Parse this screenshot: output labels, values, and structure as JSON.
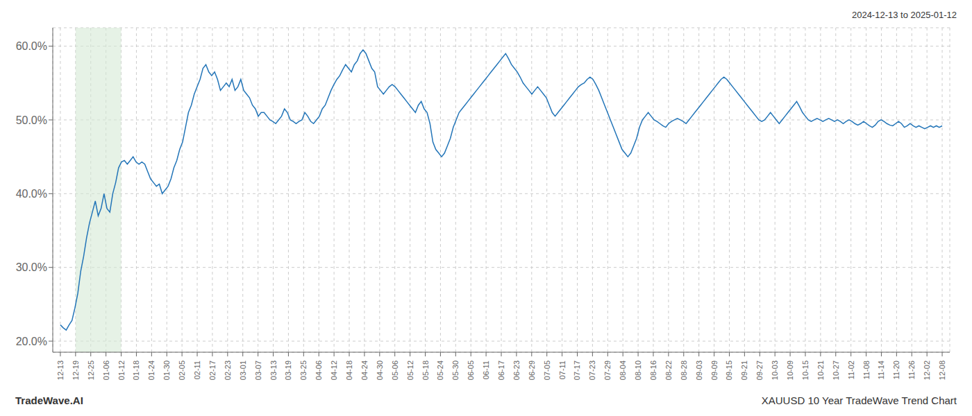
{
  "chart_data": {
    "type": "line",
    "color": "#2375b8",
    "grid": true,
    "annotations": [
      "2024-12-13 to 2025-01-12",
      "TradeWave.AI",
      "XAUUSD 10 Year TradeWave Trend Chart"
    ],
    "shaded": [
      {
        "start": 1,
        "end": 4,
        "color": "#d6ead6"
      }
    ],
    "xlim": [
      -0.5,
      58.5
    ],
    "xticks": [
      {
        "value": 0,
        "label": "12-13"
      },
      {
        "value": 1,
        "label": "12-19"
      },
      {
        "value": 2,
        "label": "12-25"
      },
      {
        "value": 3,
        "label": "01-06"
      },
      {
        "value": 4,
        "label": "01-12"
      },
      {
        "value": 5,
        "label": "01-18"
      },
      {
        "value": 6,
        "label": "01-24"
      },
      {
        "value": 7,
        "label": "01-30"
      },
      {
        "value": 8,
        "label": "02-05"
      },
      {
        "value": 9,
        "label": "02-11"
      },
      {
        "value": 10,
        "label": "02-17"
      },
      {
        "value": 11,
        "label": "02-23"
      },
      {
        "value": 12,
        "label": "03-01"
      },
      {
        "value": 13,
        "label": "03-07"
      },
      {
        "value": 14,
        "label": "03-13"
      },
      {
        "value": 15,
        "label": "03-19"
      },
      {
        "value": 16,
        "label": "03-25"
      },
      {
        "value": 17,
        "label": "04-06"
      },
      {
        "value": 18,
        "label": "04-12"
      },
      {
        "value": 19,
        "label": "04-18"
      },
      {
        "value": 20,
        "label": "04-24"
      },
      {
        "value": 21,
        "label": "04-30"
      },
      {
        "value": 22,
        "label": "05-06"
      },
      {
        "value": 23,
        "label": "05-12"
      },
      {
        "value": 24,
        "label": "05-18"
      },
      {
        "value": 25,
        "label": "05-24"
      },
      {
        "value": 26,
        "label": "05-30"
      },
      {
        "value": 27,
        "label": "06-05"
      },
      {
        "value": 28,
        "label": "06-11"
      },
      {
        "value": 29,
        "label": "06-17"
      },
      {
        "value": 30,
        "label": "06-23"
      },
      {
        "value": 31,
        "label": "06-29"
      },
      {
        "value": 32,
        "label": "07-05"
      },
      {
        "value": 33,
        "label": "07-11"
      },
      {
        "value": 34,
        "label": "07-17"
      },
      {
        "value": 35,
        "label": "07-23"
      },
      {
        "value": 36,
        "label": "07-29"
      },
      {
        "value": 37,
        "label": "08-04"
      },
      {
        "value": 38,
        "label": "08-10"
      },
      {
        "value": 39,
        "label": "08-16"
      },
      {
        "value": 40,
        "label": "08-22"
      },
      {
        "value": 41,
        "label": "08-28"
      },
      {
        "value": 42,
        "label": "09-03"
      },
      {
        "value": 43,
        "label": "09-09"
      },
      {
        "value": 44,
        "label": "09-15"
      },
      {
        "value": 45,
        "label": "09-21"
      },
      {
        "value": 46,
        "label": "09-27"
      },
      {
        "value": 47,
        "label": "10-03"
      },
      {
        "value": 48,
        "label": "10-09"
      },
      {
        "value": 49,
        "label": "10-15"
      },
      {
        "value": 50,
        "label": "10-21"
      },
      {
        "value": 51,
        "label": "10-27"
      },
      {
        "value": 52,
        "label": "11-02"
      },
      {
        "value": 53,
        "label": "11-08"
      },
      {
        "value": 54,
        "label": "11-14"
      },
      {
        "value": 55,
        "label": "11-20"
      },
      {
        "value": 56,
        "label": "11-26"
      },
      {
        "value": 57,
        "label": "12-02"
      },
      {
        "value": 58,
        "label": "12-08"
      }
    ],
    "ylim": [
      0.185,
      0.625
    ],
    "yticks": [
      {
        "value": 0.2,
        "label": "20.0%"
      },
      {
        "value": 0.3,
        "label": "30.0%"
      },
      {
        "value": 0.4,
        "label": "40.0%"
      },
      {
        "value": 0.5,
        "label": "50.0%"
      },
      {
        "value": 0.6,
        "label": "60.0%"
      }
    ],
    "x": [
      0,
      0.19141914,
      0.38283828,
      0.57425742,
      0.76567656,
      0.9570957,
      1.14851485,
      1.33993399,
      1.53135313,
      1.72277227,
      1.91419141,
      2.10561056,
      2.2970297,
      2.48844884,
      2.67986798,
      2.87128712,
      3.06270627,
      3.25412541,
      3.44554455,
      3.63696369,
      3.82838283,
      4.01980198,
      4.21122112,
      4.40264026,
      4.5940594,
      4.78547854,
      4.97689768,
      5.16831683,
      5.35973597,
      5.55115511,
      5.74257425,
      5.93399339,
      6.12541254,
      6.31683168,
      6.50825082,
      6.69966996,
      6.8910891,
      7.08250825,
      7.27392739,
      7.46534653,
      7.65676567,
      7.84818481,
      8.03960396,
      8.2310231,
      8.42244224,
      8.61386138,
      8.80528052,
      8.99669966,
      9.18811881,
      9.37953795,
      9.57095709,
      9.76237623,
      9.95379537,
      10.14521452,
      10.33663366,
      10.5280528,
      10.71947194,
      10.91089108,
      11.10231023,
      11.29372937,
      11.48514851,
      11.67656765,
      11.86798679,
      12.05940594,
      12.25082508,
      12.44224422,
      12.63366336,
      12.8250825,
      13.01650165,
      13.20792079,
      13.39933993,
      13.59075907,
      13.78217821,
      13.97359735,
      14.1650165,
      14.35643564,
      14.54785478,
      14.73927392,
      14.93069306,
      15.12211221,
      15.31353135,
      15.50495049,
      15.69636963,
      15.88778877,
      16.07920792,
      16.27062706,
      16.4620462,
      16.65346534,
      16.84488448,
      17.03630363,
      17.22772277,
      17.41914191,
      17.61056105,
      17.80198019,
      17.99339933,
      18.18481848,
      18.37623762,
      18.56765676,
      18.7590759,
      18.95049504,
      19.14191419,
      19.33333333,
      19.52475247,
      19.71617161,
      19.90759075,
      20.0990099,
      20.29042904,
      20.48184818,
      20.67326732,
      20.86468646,
      21.05610561,
      21.24752475,
      21.43894389,
      21.63036303,
      21.82178217,
      22.01320132,
      22.20462046,
      22.3960396,
      22.58745874,
      22.77887788,
      22.97029702,
      23.16171617,
      23.35313531,
      23.54455445,
      23.73597359,
      23.92739273,
      24.11881188,
      24.31023102,
      24.50165016,
      24.6930693,
      24.88448844,
      25.07590759,
      25.26732673,
      25.45874587,
      25.65016501,
      25.84158415,
      26.0330033,
      26.22442244,
      26.41584158,
      26.60726072,
      26.79867986,
      26.990099,
      27.18151815,
      27.37293729,
      27.56435643,
      27.75577557,
      27.94719471,
      28.13861386,
      28.330033,
      28.52145214,
      28.71287128,
      28.90429042,
      29.09570957,
      29.28712871,
      29.47854785,
      29.66996699,
      29.86138613,
      30.05280528,
      30.24422442,
      30.43564356,
      30.6270627,
      30.81848184,
      31.00990099,
      31.20132013,
      31.39273927,
      31.58415841,
      31.77557755,
      31.96699669,
      32.15841584,
      32.34983498,
      32.54125412,
      32.73267326,
      32.9240924,
      33.11551155,
      33.30693069,
      33.49834983,
      33.68976897,
      33.88118811,
      34.07260726,
      34.2640264,
      34.45544554,
      34.64686468,
      34.83828382,
      35.02970297,
      35.22112211,
      35.41254125,
      35.60396039,
      35.79537953,
      35.98679867,
      36.17821782,
      36.36963696,
      36.5610561,
      36.75247524,
      36.94389438,
      37.13531353,
      37.32673267,
      37.51815181,
      37.70957095,
      37.90099009,
      38.09240924,
      38.28382838,
      38.47524752,
      38.66666666,
      38.8580858,
      39.04950495,
      39.24092409,
      39.43234323,
      39.62376237,
      39.81518151,
      40.00660066,
      40.1980198,
      40.38943894,
      40.58085808,
      40.77227722,
      40.96369636,
      41.15511551,
      41.34653465,
      41.53795379,
      41.72937293,
      41.92079207,
      42.11221122,
      42.30363036,
      42.4950495,
      42.68646864,
      42.87788778,
      43.06930693,
      43.26072607,
      43.45214521,
      43.64356435,
      43.83498349,
      44.02640264,
      44.21782178,
      44.40924092,
      44.60066006,
      44.7920792,
      44.98349834,
      45.17491749,
      45.36633663,
      45.55775577,
      45.74917491,
      45.94059405,
      46.1320132,
      46.32343234,
      46.51485148,
      46.70627062,
      46.89768976,
      47.08910891,
      47.28052805,
      47.47194719,
      47.66336633,
      47.85478547,
      48.04620462,
      48.23762376,
      48.4290429,
      48.62046204,
      48.81188118,
      49.00330033,
      49.19471947,
      49.38613861,
      49.57755775,
      49.76897689,
      49.96039603,
      50.15181518,
      50.34323432,
      50.53465346,
      50.7260726,
      50.91749174,
      51.10891089,
      51.30033003,
      51.49174917,
      51.68316831,
      51.87458745,
      52.0660066,
      52.25742574,
      52.44884488,
      52.64026402,
      52.83168316,
      53.02310231,
      53.21452145,
      53.40594059,
      53.59735973,
      53.78877887,
      53.98019801,
      54.17161716,
      54.3630363,
      54.55445544,
      54.74587458,
      54.93729372,
      55.12871287,
      55.32013201,
      55.51155115,
      55.70297029,
      55.89438943,
      56.08580858,
      56.27722772,
      56.46864686,
      56.660066,
      56.85148514,
      57.04290429,
      57.23432343,
      57.42574257,
      57.61716171,
      57.80858085,
      58
    ],
    "values": [
      0.222,
      0.218,
      0.215,
      0.222,
      0.228,
      0.245,
      0.265,
      0.295,
      0.315,
      0.34,
      0.36,
      0.375,
      0.39,
      0.37,
      0.38,
      0.4,
      0.38,
      0.375,
      0.4,
      0.415,
      0.435,
      0.443,
      0.445,
      0.44,
      0.445,
      0.45,
      0.443,
      0.44,
      0.443,
      0.44,
      0.43,
      0.42,
      0.415,
      0.41,
      0.413,
      0.4,
      0.405,
      0.41,
      0.42,
      0.435,
      0.445,
      0.46,
      0.47,
      0.49,
      0.51,
      0.52,
      0.535,
      0.545,
      0.555,
      0.57,
      0.575,
      0.565,
      0.56,
      0.565,
      0.555,
      0.54,
      0.545,
      0.55,
      0.545,
      0.555,
      0.54,
      0.545,
      0.555,
      0.54,
      0.535,
      0.53,
      0.52,
      0.515,
      0.505,
      0.51,
      0.51,
      0.505,
      0.5,
      0.498,
      0.495,
      0.5,
      0.505,
      0.515,
      0.51,
      0.5,
      0.498,
      0.495,
      0.498,
      0.5,
      0.51,
      0.505,
      0.498,
      0.495,
      0.5,
      0.505,
      0.515,
      0.52,
      0.53,
      0.54,
      0.548,
      0.555,
      0.56,
      0.568,
      0.575,
      0.57,
      0.565,
      0.575,
      0.58,
      0.59,
      0.595,
      0.59,
      0.58,
      0.57,
      0.565,
      0.545,
      0.54,
      0.535,
      0.54,
      0.545,
      0.548,
      0.545,
      0.54,
      0.535,
      0.53,
      0.525,
      0.52,
      0.515,
      0.51,
      0.52,
      0.525,
      0.515,
      0.51,
      0.495,
      0.47,
      0.46,
      0.455,
      0.45,
      0.455,
      0.465,
      0.475,
      0.49,
      0.5,
      0.51,
      0.515,
      0.52,
      0.525,
      0.53,
      0.535,
      0.54,
      0.545,
      0.55,
      0.555,
      0.56,
      0.565,
      0.57,
      0.575,
      0.58,
      0.585,
      0.59,
      0.583,
      0.575,
      0.57,
      0.565,
      0.558,
      0.55,
      0.545,
      0.54,
      0.535,
      0.54,
      0.545,
      0.54,
      0.535,
      0.53,
      0.52,
      0.51,
      0.505,
      0.51,
      0.515,
      0.52,
      0.525,
      0.53,
      0.535,
      0.54,
      0.545,
      0.548,
      0.55,
      0.555,
      0.558,
      0.555,
      0.548,
      0.54,
      0.53,
      0.52,
      0.51,
      0.5,
      0.49,
      0.48,
      0.47,
      0.46,
      0.455,
      0.45,
      0.455,
      0.465,
      0.475,
      0.49,
      0.5,
      0.505,
      0.51,
      0.505,
      0.5,
      0.498,
      0.495,
      0.492,
      0.49,
      0.495,
      0.498,
      0.5,
      0.502,
      0.5,
      0.498,
      0.495,
      0.5,
      0.505,
      0.51,
      0.515,
      0.52,
      0.525,
      0.53,
      0.535,
      0.54,
      0.545,
      0.55,
      0.555,
      0.558,
      0.555,
      0.55,
      0.545,
      0.54,
      0.535,
      0.53,
      0.525,
      0.52,
      0.515,
      0.51,
      0.505,
      0.5,
      0.498,
      0.5,
      0.505,
      0.51,
      0.505,
      0.5,
      0.495,
      0.5,
      0.505,
      0.51,
      0.515,
      0.52,
      0.525,
      0.518,
      0.51,
      0.505,
      0.5,
      0.498,
      0.5,
      0.502,
      0.5,
      0.498,
      0.5,
      0.502,
      0.5,
      0.498,
      0.5,
      0.498,
      0.495,
      0.498,
      0.5,
      0.498,
      0.495,
      0.493,
      0.495,
      0.498,
      0.495,
      0.492,
      0.49,
      0.493,
      0.498,
      0.5,
      0.498,
      0.495,
      0.493,
      0.492,
      0.495,
      0.498,
      0.495,
      0.49,
      0.492,
      0.495,
      0.492,
      0.49,
      0.492,
      0.49,
      0.488,
      0.49,
      0.492,
      0.49,
      0.492,
      0.49,
      0.492
    ]
  }
}
